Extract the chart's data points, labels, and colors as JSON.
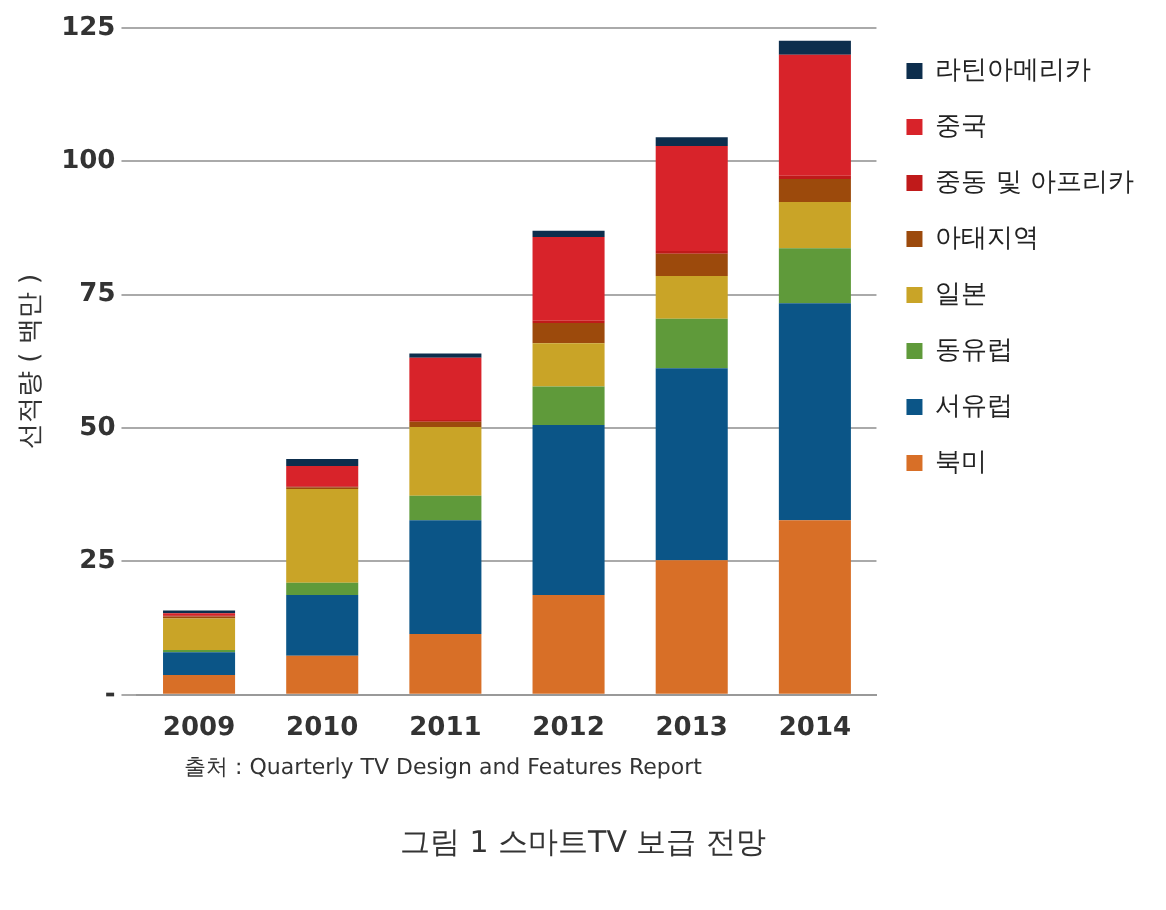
{
  "chart_data": {
    "type": "bar",
    "title": "그림 1 스마트TV 보급 전망",
    "ylabel": "선적량 ( 백만 )",
    "annotations": [
      "출처 : Quarterly TV Design and Features Report"
    ],
    "categories": [
      "2009",
      "2010",
      "2011",
      "2012",
      "2013",
      "2014"
    ],
    "stacked": true,
    "series": [
      {
        "name": "북미",
        "color": "#d86f27",
        "values": [
          3.7,
          7.3,
          11.4,
          18.7,
          25.2,
          32.7
        ]
      },
      {
        "name": "서유럽",
        "color": "#0b5587",
        "values": [
          4.3,
          11.4,
          21.3,
          31.9,
          36,
          40.7
        ]
      },
      {
        "name": "동유럽",
        "color": "#5f9a3a",
        "values": [
          0.4,
          2.3,
          4.6,
          7.2,
          9.3,
          10.3
        ]
      },
      {
        "name": "일본",
        "color": "#c9a427",
        "values": [
          5.9,
          17.6,
          12.9,
          8.1,
          8,
          8.7
        ]
      },
      {
        "name": "아태지역",
        "color": "#9c4a0c",
        "values": [
          0.4,
          0.3,
          1.0,
          3.8,
          4.2,
          4.3
        ]
      },
      {
        "name": "중동 및 아프리카",
        "color": "#c01a1a",
        "values": [
          0.2,
          0.2,
          0.3,
          0.4,
          0.5,
          0.6
        ]
      },
      {
        "name": "중국",
        "color": "#d8232a",
        "values": [
          0.4,
          3.8,
          11.7,
          15.7,
          19.7,
          22.7
        ]
      },
      {
        "name": "라틴아메리카",
        "color": "#0d2e4d",
        "values": [
          0.5,
          1.3,
          0.8,
          1.2,
          1.6,
          2.6
        ]
      }
    ],
    "ylim": [
      0,
      125
    ],
    "yticks": [
      {
        "value": 0,
        "label": "-"
      },
      25,
      50,
      75,
      100,
      125
    ],
    "grid": "y",
    "legend": "right"
  }
}
